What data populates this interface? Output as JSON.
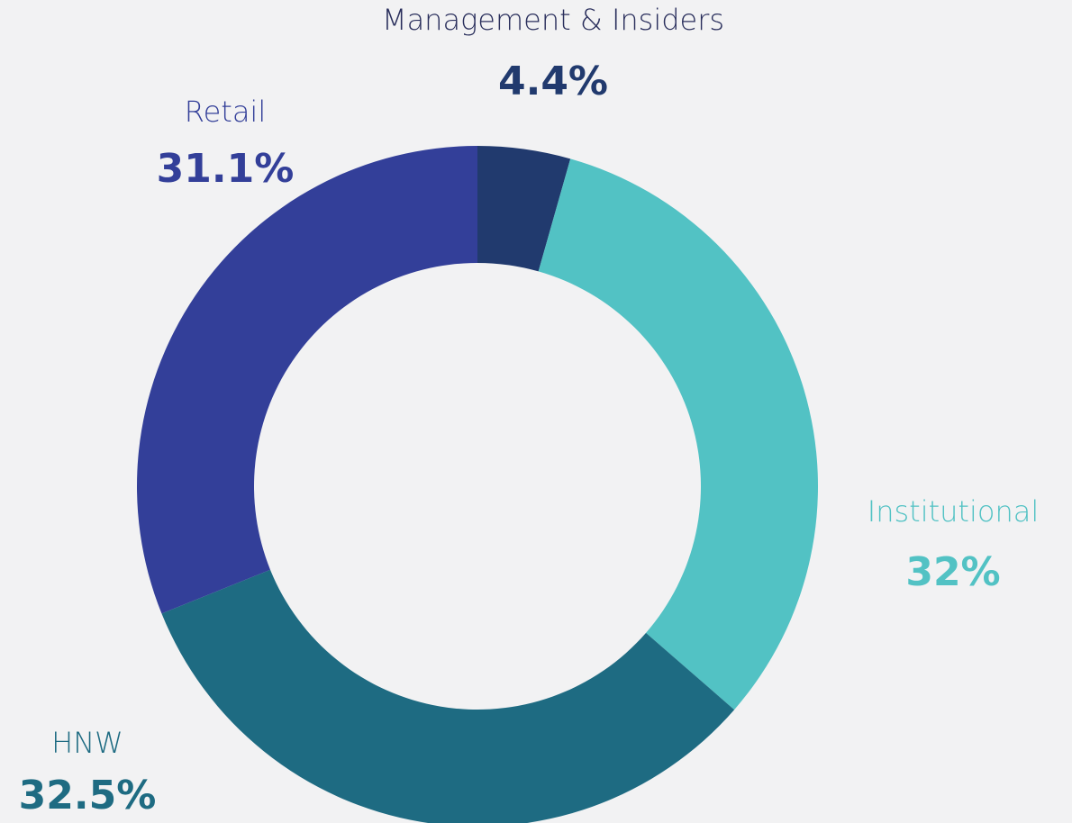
{
  "chart_data": {
    "type": "donut",
    "categories": [
      "Management & Insiders",
      "Institutional",
      "HNW",
      "Retail"
    ],
    "values": [
      4.4,
      32,
      32.5,
      31.1
    ],
    "value_labels": [
      "4.4%",
      "32%",
      "32.5%",
      "31.1%"
    ],
    "colors": [
      "#213a6e",
      "#52c2c4",
      "#1e6b82",
      "#333f99"
    ]
  }
}
